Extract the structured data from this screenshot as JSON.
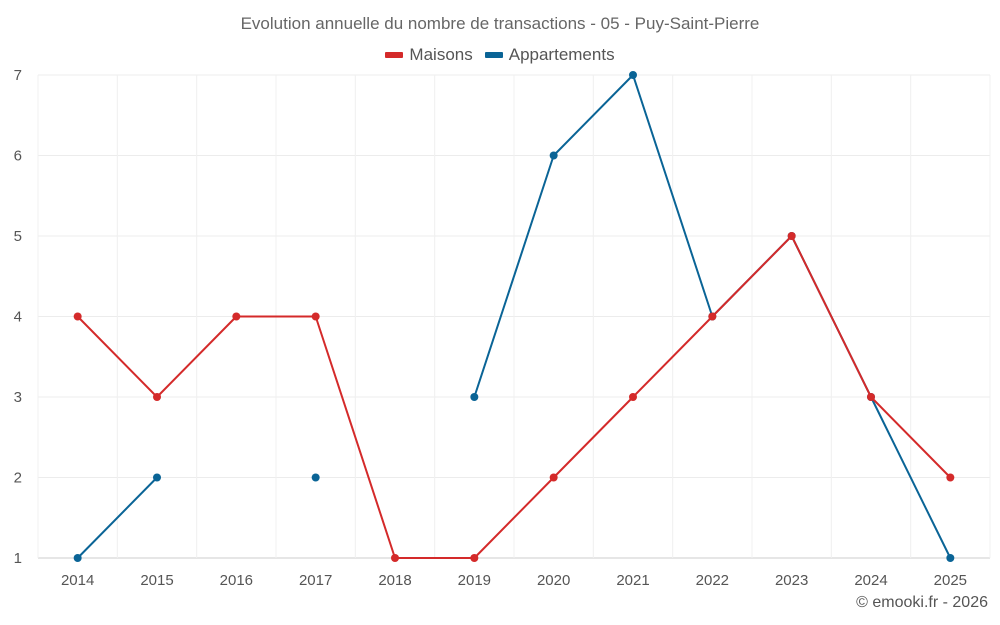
{
  "chart_data": {
    "type": "line",
    "title": "Evolution annuelle du nombre de transactions - 05 - Puy-Saint-Pierre",
    "categories": [
      "2014",
      "2015",
      "2016",
      "2017",
      "2018",
      "2019",
      "2020",
      "2021",
      "2022",
      "2023",
      "2024",
      "2025"
    ],
    "series": [
      {
        "name": "Maisons",
        "color": "#d42a2a",
        "values": [
          4,
          3,
          4,
          4,
          1,
          1,
          2,
          3,
          4,
          5,
          3,
          2
        ]
      },
      {
        "name": "Appartements",
        "color": "#0a6496",
        "values": [
          1,
          2,
          null,
          2,
          null,
          3,
          6,
          7,
          4,
          5,
          3,
          1
        ]
      }
    ],
    "ylim": [
      1,
      7
    ],
    "yticks": [
      1,
      2,
      3,
      4,
      5,
      6,
      7
    ],
    "xlabel": "",
    "ylabel": "",
    "legend_position": "top-center",
    "grid": true
  },
  "credit": "© emooki.fr - 2026"
}
